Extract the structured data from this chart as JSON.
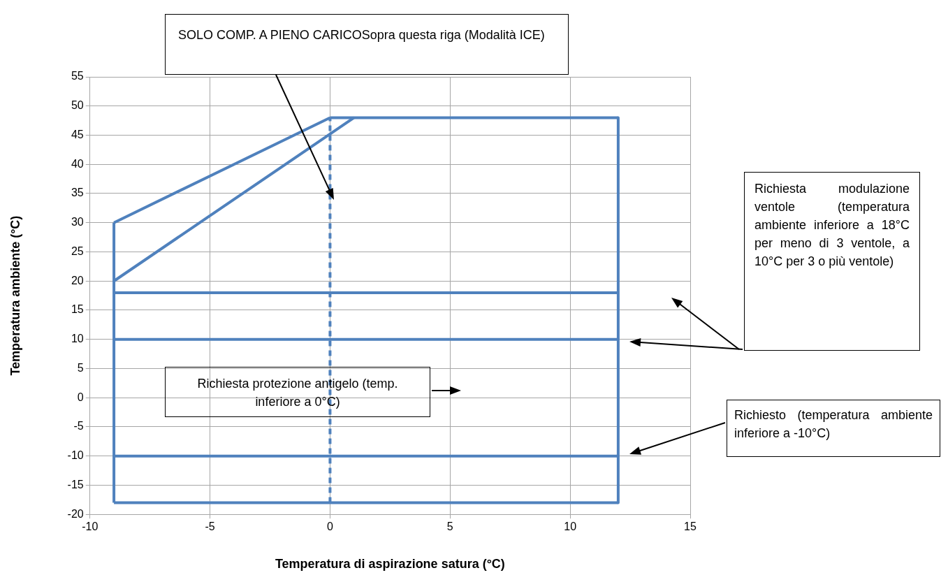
{
  "chart_data": {
    "type": "line",
    "xlabel": "Temperatura di aspirazione satura (°C)",
    "ylabel": "Temperatura ambiente (°C)",
    "xlim": [
      -10,
      15
    ],
    "xticks": [
      -10,
      -5,
      0,
      5,
      10,
      15
    ],
    "ylim": [
      -20,
      55
    ],
    "yticks": [
      -20,
      -15,
      -10,
      -5,
      0,
      5,
      10,
      15,
      20,
      25,
      30,
      35,
      40,
      45,
      50,
      55
    ],
    "grid": true,
    "legend": false,
    "marker": "none",
    "series": [
      {
        "color": "#4f81bd",
        "x": [
          -9,
          -9
        ],
        "values": [
          -18,
          30
        ]
      },
      {
        "color": "#4f81bd",
        "x": [
          -9,
          0
        ],
        "values": [
          30,
          48
        ]
      },
      {
        "color": "#4f81bd",
        "x": [
          0,
          12
        ],
        "values": [
          48,
          48
        ]
      },
      {
        "color": "#4f81bd",
        "x": [
          12,
          12
        ],
        "values": [
          48,
          -18
        ]
      },
      {
        "color": "#4f81bd",
        "x": [
          -9,
          12
        ],
        "values": [
          -18,
          -18
        ]
      },
      {
        "color": "#4f81bd",
        "x": [
          -9,
          1
        ],
        "values": [
          20,
          48
        ]
      },
      {
        "color": "#4f81bd",
        "x": [
          -9,
          12
        ],
        "values": [
          18,
          18
        ]
      },
      {
        "color": "#4f81bd",
        "x": [
          -9,
          12
        ],
        "values": [
          10,
          10
        ]
      },
      {
        "color": "#4f81bd",
        "x": [
          -9,
          12
        ],
        "values": [
          -10,
          -10
        ]
      },
      {
        "color": "#4f81bd",
        "x": [
          0,
          0
        ],
        "values": [
          -18,
          48
        ],
        "line_style": "dashed"
      }
    ],
    "annotations": [
      "SOLO COMP. A PIENO CARICOSopra questa riga (Modalità ICE)",
      "Richiesta protezione antigelo (temp. inferiore a 0°C)",
      "Richiesta modulazione ventole (temperatura ambiente inferiore a 18°C per meno di 3 ventole, a 10°C per 3 o più ventole)",
      "Richiesto (temperatura ambiente inferiore a -10°C)"
    ]
  }
}
